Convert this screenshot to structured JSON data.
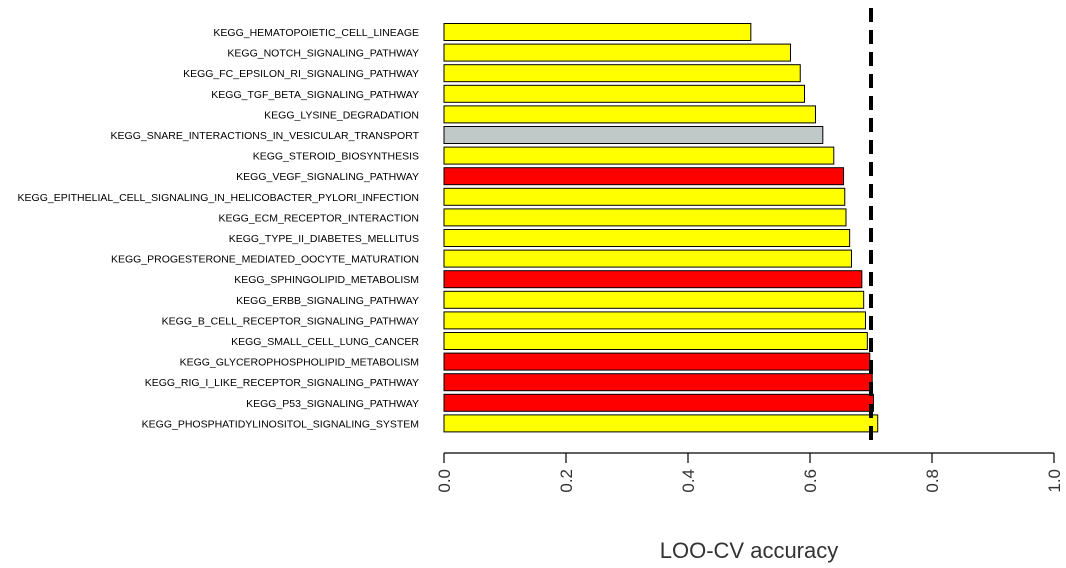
{
  "chart_data": {
    "type": "bar",
    "orientation": "horizontal",
    "xlabel": "LOO-CV accuracy",
    "xlim": [
      0,
      1.0
    ],
    "xticks": [
      "0.0",
      "0.2",
      "0.4",
      "0.6",
      "0.8",
      "1.0"
    ],
    "xtick_values": [
      0,
      0.2,
      0.4,
      0.6,
      0.8,
      1.0
    ],
    "threshold": 0.7,
    "grid": false,
    "colors": {
      "yellow": "#ffff00",
      "red": "#ff0000",
      "gray": "#c0c8c8"
    },
    "categories": [
      "KEGG_HEMATOPOIETIC_CELL_LINEAGE",
      "KEGG_NOTCH_SIGNALING_PATHWAY",
      "KEGG_FC_EPSILON_RI_SIGNALING_PATHWAY",
      "KEGG_TGF_BETA_SIGNALING_PATHWAY",
      "KEGG_LYSINE_DEGRADATION",
      "KEGG_SNARE_INTERACTIONS_IN_VESICULAR_TRANSPORT",
      "KEGG_STEROID_BIOSYNTHESIS",
      "KEGG_VEGF_SIGNALING_PATHWAY",
      "KEGG_EPITHELIAL_CELL_SIGNALING_IN_HELICOBACTER_PYLORI_INFECTION",
      "KEGG_ECM_RECEPTOR_INTERACTION",
      "KEGG_TYPE_II_DIABETES_MELLITUS",
      "KEGG_PROGESTERONE_MEDIATED_OOCYTE_MATURATION",
      "KEGG_SPHINGOLIPID_METABOLISM",
      "KEGG_ERBB_SIGNALING_PATHWAY",
      "KEGG_B_CELL_RECEPTOR_SIGNALING_PATHWAY",
      "KEGG_SMALL_CELL_LUNG_CANCER",
      "KEGG_GLYCEROPHOSPHOLIPID_METABOLISM",
      "KEGG_RIG_I_LIKE_RECEPTOR_SIGNALING_PATHWAY",
      "KEGG_P53_SIGNALING_PATHWAY",
      "KEGG_PHOSPHATIDYLINOSITOL_SIGNALING_SYSTEM"
    ],
    "values": [
      0.503,
      0.568,
      0.584,
      0.591,
      0.609,
      0.621,
      0.639,
      0.655,
      0.657,
      0.659,
      0.665,
      0.668,
      0.685,
      0.688,
      0.691,
      0.694,
      0.698,
      0.702,
      0.704,
      0.711
    ],
    "bar_colors": [
      "yellow",
      "yellow",
      "yellow",
      "yellow",
      "yellow",
      "gray",
      "yellow",
      "red",
      "yellow",
      "yellow",
      "yellow",
      "yellow",
      "red",
      "yellow",
      "yellow",
      "yellow",
      "red",
      "red",
      "red",
      "yellow"
    ]
  }
}
